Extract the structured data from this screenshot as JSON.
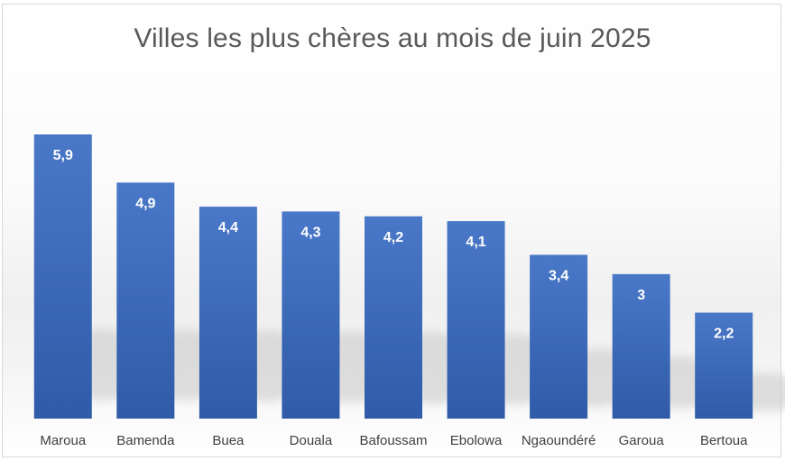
{
  "chart_data": {
    "type": "bar",
    "title": "Villes les plus chères au mois de juin 2025",
    "categories": [
      "Maroua",
      "Bamenda",
      "Buea",
      "Douala",
      "Bafoussam",
      "Ebolowa",
      "Ngaoundéré",
      "Garoua",
      "Bertoua"
    ],
    "values": [
      5.9,
      4.9,
      4.4,
      4.3,
      4.2,
      4.1,
      3.4,
      3,
      2.2
    ],
    "value_labels": [
      "5,9",
      "4,9",
      "4,4",
      "4,3",
      "4,2",
      "4,1",
      "3,4",
      "3",
      "2,2"
    ],
    "ylim": [
      0,
      5.9
    ],
    "grid": false,
    "legend": "none",
    "bar_color_top": "#4a78c8",
    "bar_color_bottom": "#2f5ba8"
  }
}
